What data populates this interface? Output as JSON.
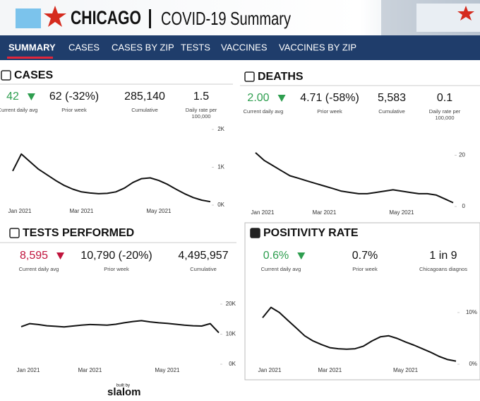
{
  "header": {
    "city": "CHICAGO",
    "title": "COVID-19 Summary"
  },
  "nav": [
    "SUMMARY",
    "CASES",
    "CASES BY ZIP",
    "TESTS",
    "VACCINES",
    "VACCINES BY ZIP"
  ],
  "panels": [
    {
      "title": "CASES",
      "kpis": [
        {
          "value": "42",
          "label": [
            "Current daily avg"
          ],
          "trend": "down",
          "color": "#2e9e4f"
        },
        {
          "value": "62 (-32%)",
          "label": [
            "Prior week"
          ]
        },
        {
          "value": "285,140",
          "label": [
            "Cumulative"
          ]
        },
        {
          "value": "1.5",
          "label": [
            "Daily rate per",
            "100,000"
          ]
        }
      ]
    },
    {
      "title": "DEATHS",
      "kpis": [
        {
          "value": "2.00",
          "label": [
            "Current daily avg"
          ],
          "trend": "down",
          "color": "#2e9e4f"
        },
        {
          "value": "4.71 (-58%)",
          "label": [
            "Prior week"
          ]
        },
        {
          "value": "5,583",
          "label": [
            "Cumulative"
          ]
        },
        {
          "value": "0.1",
          "label": [
            "Daily rate per",
            "100,000"
          ]
        }
      ]
    },
    {
      "title": "TESTS PERFORMED",
      "kpis": [
        {
          "value": "8,595",
          "label": [
            "Current daily avg"
          ],
          "trend": "down",
          "color": "#c0143c"
        },
        {
          "value": "10,790 (-20%)",
          "label": [
            "Prior week"
          ]
        },
        {
          "value": "4,495,957",
          "label": [
            "Cumulative"
          ]
        }
      ]
    },
    {
      "title": "POSITIVITY RATE",
      "kpis": [
        {
          "value": "0.6%",
          "label": [
            "Current daily avg"
          ],
          "trend": "down",
          "color": "#2e9e4f"
        },
        {
          "value": "0.7%",
          "label": [
            "Prior week"
          ]
        },
        {
          "value": "1 in 9",
          "label": [
            "Chicagoans diagnos"
          ]
        }
      ]
    }
  ],
  "chart_data": [
    {
      "type": "line",
      "color": "#111111",
      "categories": [
        "Jan 2021",
        null,
        null,
        null,
        null,
        null,
        null,
        null,
        "Mar 2021",
        null,
        null,
        null,
        null,
        null,
        null,
        null,
        null,
        "May 2021",
        null,
        null,
        null,
        null,
        null,
        null
      ],
      "values": [
        900,
        1350,
        1150,
        950,
        800,
        650,
        520,
        420,
        350,
        320,
        300,
        310,
        350,
        450,
        600,
        700,
        720,
        650,
        550,
        420,
        300,
        200,
        130,
        90
      ],
      "ylim": [
        0,
        2000
      ],
      "yticks": [
        {
          "value": 0,
          "label": "0K"
        },
        {
          "value": 1000,
          "label": "1K"
        },
        {
          "value": 2000,
          "label": "2K"
        }
      ]
    },
    {
      "type": "line",
      "color": "#111111",
      "categories": [
        "Jan 2021",
        null,
        null,
        null,
        null,
        null,
        null,
        null,
        "Mar 2021",
        null,
        null,
        null,
        null,
        null,
        null,
        null,
        null,
        "May 2021",
        null,
        null,
        null,
        null,
        null,
        null
      ],
      "values": [
        21,
        18,
        16,
        14,
        12,
        11,
        10,
        9,
        8,
        7,
        6,
        5.5,
        5,
        5,
        5.5,
        6,
        6.5,
        6,
        5.5,
        5,
        5,
        4.5,
        3,
        1.5
      ],
      "ylim": [
        0,
        24
      ],
      "yticks": [
        0,
        20
      ]
    },
    {
      "type": "line",
      "color": "#111111",
      "categories": [
        "Jan 2021",
        null,
        null,
        null,
        null,
        null,
        null,
        null,
        "Mar 2021",
        null,
        null,
        null,
        null,
        null,
        null,
        null,
        null,
        "May 2021",
        null,
        null,
        null,
        null,
        null,
        null
      ],
      "values": [
        12500,
        13500,
        13200,
        12800,
        12600,
        12400,
        12700,
        13000,
        13200,
        13100,
        13000,
        13300,
        13800,
        14200,
        14500,
        14100,
        13800,
        13600,
        13300,
        13000,
        12800,
        12700,
        13500,
        10500
      ],
      "ylim": [
        0,
        20000
      ],
      "yticks": [
        {
          "value": 0,
          "label": "0K"
        },
        {
          "value": 10000,
          "label": "10K"
        },
        {
          "value": 20000,
          "label": "20K"
        }
      ]
    },
    {
      "type": "line",
      "color": "#111111",
      "categories": [
        "Jan 2021",
        null,
        null,
        null,
        null,
        null,
        null,
        null,
        "Mar 2021",
        null,
        null,
        null,
        null,
        null,
        null,
        null,
        null,
        "May 2021",
        null,
        null,
        null,
        null,
        null,
        null
      ],
      "values": [
        9,
        11,
        10,
        8.5,
        7,
        5.5,
        4.5,
        3.8,
        3.2,
        3,
        2.9,
        3,
        3.5,
        4.5,
        5.3,
        5.5,
        5,
        4.3,
        3.7,
        3,
        2.3,
        1.5,
        0.9,
        0.6
      ],
      "ylim": [
        0,
        13
      ],
      "yticks": [
        {
          "value": 0,
          "label": "0%"
        },
        {
          "value": 10,
          "label": "10%"
        }
      ]
    }
  ],
  "footer": {
    "built_by": "built by",
    "brand": "slalom"
  }
}
